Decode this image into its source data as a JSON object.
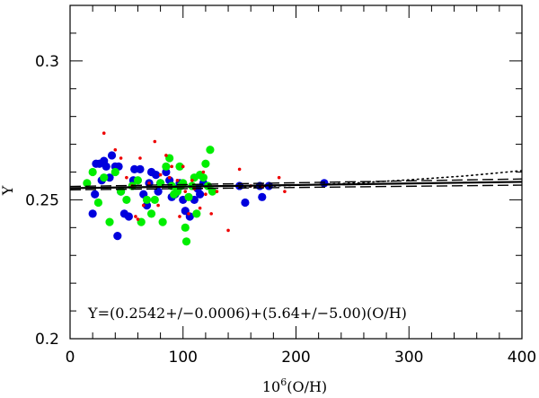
{
  "chart_data": {
    "type": "scatter",
    "title": "",
    "xlabel_base": "10",
    "xlabel_exp": "6",
    "xlabel_rest": "(O/H)",
    "ylabel": "Y",
    "xlim": [
      0,
      400
    ],
    "ylim": [
      0.2,
      0.32
    ],
    "x_ticks": [
      0,
      100,
      200,
      300,
      400
    ],
    "x_tick_labels": [
      "0",
      "100",
      "200",
      "300",
      "400"
    ],
    "y_ticks": [
      0.2,
      0.25,
      0.3
    ],
    "y_tick_labels": [
      "0.2",
      "0.25",
      "0.3"
    ],
    "grid": false,
    "annotation": "Y=(0.2542+/−0.0006)+(5.64+/−5.00)(O/H)",
    "colors": {
      "blue": "#0000dd",
      "green": "#00ee00",
      "red": "#ee0000",
      "line": "#000000"
    },
    "series": [
      {
        "name": "blue",
        "marker": "large",
        "points": [
          [
            20,
            0.245
          ],
          [
            22,
            0.252
          ],
          [
            23,
            0.263
          ],
          [
            26,
            0.263
          ],
          [
            28,
            0.257
          ],
          [
            30,
            0.264
          ],
          [
            32,
            0.262
          ],
          [
            35,
            0.258
          ],
          [
            37,
            0.266
          ],
          [
            40,
            0.262
          ],
          [
            43,
            0.262
          ],
          [
            45,
            0.253
          ],
          [
            48,
            0.245
          ],
          [
            52,
            0.244
          ],
          [
            56,
            0.257
          ],
          [
            57,
            0.261
          ],
          [
            62,
            0.261
          ],
          [
            65,
            0.252
          ],
          [
            68,
            0.248
          ],
          [
            70,
            0.256
          ],
          [
            72,
            0.26
          ],
          [
            76,
            0.259
          ],
          [
            78,
            0.253
          ],
          [
            80,
            0.256
          ],
          [
            85,
            0.26
          ],
          [
            88,
            0.257
          ],
          [
            90,
            0.251
          ],
          [
            93,
            0.252
          ],
          [
            95,
            0.254
          ],
          [
            97,
            0.256
          ],
          [
            100,
            0.25
          ],
          [
            102,
            0.246
          ],
          [
            106,
            0.244
          ],
          [
            110,
            0.25
          ],
          [
            113,
            0.254
          ],
          [
            115,
            0.252
          ],
          [
            118,
            0.256
          ],
          [
            150,
            0.255
          ],
          [
            155,
            0.249
          ],
          [
            168,
            0.255
          ],
          [
            170,
            0.251
          ],
          [
            176,
            0.255
          ],
          [
            225,
            0.256
          ],
          [
            42,
            0.237
          ]
        ]
      },
      {
        "name": "green",
        "marker": "large",
        "points": [
          [
            15,
            0.256
          ],
          [
            20,
            0.26
          ],
          [
            25,
            0.249
          ],
          [
            30,
            0.258
          ],
          [
            35,
            0.242
          ],
          [
            40,
            0.26
          ],
          [
            45,
            0.253
          ],
          [
            50,
            0.25
          ],
          [
            55,
            0.255
          ],
          [
            60,
            0.257
          ],
          [
            63,
            0.242
          ],
          [
            68,
            0.25
          ],
          [
            72,
            0.245
          ],
          [
            75,
            0.25
          ],
          [
            80,
            0.256
          ],
          [
            85,
            0.262
          ],
          [
            88,
            0.265
          ],
          [
            90,
            0.255
          ],
          [
            92,
            0.252
          ],
          [
            95,
            0.253
          ],
          [
            97,
            0.262
          ],
          [
            98,
            0.255
          ],
          [
            100,
            0.256
          ],
          [
            102,
            0.24
          ],
          [
            103,
            0.235
          ],
          [
            105,
            0.251
          ],
          [
            108,
            0.255
          ],
          [
            110,
            0.258
          ],
          [
            112,
            0.245
          ],
          [
            115,
            0.259
          ],
          [
            118,
            0.258
          ],
          [
            120,
            0.263
          ],
          [
            122,
            0.255
          ],
          [
            124,
            0.268
          ],
          [
            126,
            0.253
          ],
          [
            82,
            0.242
          ]
        ]
      },
      {
        "name": "red",
        "marker": "small",
        "points": [
          [
            30,
            0.274
          ],
          [
            40,
            0.268
          ],
          [
            45,
            0.265
          ],
          [
            50,
            0.258
          ],
          [
            55,
            0.255
          ],
          [
            60,
            0.243
          ],
          [
            62,
            0.265
          ],
          [
            65,
            0.248
          ],
          [
            70,
            0.256
          ],
          [
            75,
            0.271
          ],
          [
            78,
            0.248
          ],
          [
            80,
            0.259
          ],
          [
            85,
            0.266
          ],
          [
            88,
            0.258
          ],
          [
            90,
            0.262
          ],
          [
            95,
            0.257
          ],
          [
            100,
            0.262
          ],
          [
            102,
            0.253
          ],
          [
            105,
            0.245
          ],
          [
            108,
            0.257
          ],
          [
            110,
            0.254
          ],
          [
            115,
            0.247
          ],
          [
            118,
            0.26
          ],
          [
            120,
            0.252
          ],
          [
            125,
            0.245
          ],
          [
            130,
            0.253
          ],
          [
            140,
            0.239
          ],
          [
            150,
            0.261
          ],
          [
            160,
            0.255
          ],
          [
            170,
            0.255
          ],
          [
            185,
            0.258
          ],
          [
            190,
            0.253
          ],
          [
            58,
            0.244
          ],
          [
            97,
            0.244
          ]
        ]
      }
    ],
    "lines": [
      {
        "name": "fit",
        "style": "solid",
        "width": 2.2,
        "points": [
          [
            0,
            0.2542
          ],
          [
            400,
            0.25646
          ]
        ]
      },
      {
        "name": "upper-dotted",
        "style": "dotted",
        "width": 1.6,
        "points": [
          [
            150,
            0.2545
          ],
          [
            250,
            0.256
          ],
          [
            300,
            0.2572
          ],
          [
            350,
            0.2586
          ],
          [
            400,
            0.2605
          ]
        ]
      },
      {
        "name": "upper-dashed",
        "style": "dashed",
        "width": 1.4,
        "points": [
          [
            0,
            0.2548
          ],
          [
            400,
            0.2575
          ]
        ]
      },
      {
        "name": "lower-dashed",
        "style": "dashed",
        "width": 1.4,
        "points": [
          [
            0,
            0.2536
          ],
          [
            400,
            0.2553
          ]
        ]
      }
    ]
  }
}
